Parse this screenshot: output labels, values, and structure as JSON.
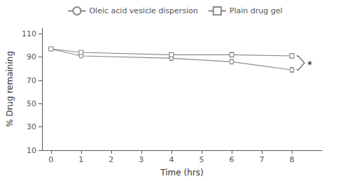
{
  "chart_data": {
    "type": "line",
    "xlabel": "Time (hrs)",
    "ylabel": "% Drug remaining",
    "x": [
      0,
      1,
      4,
      6,
      8
    ],
    "series": [
      {
        "name": "Oleic acid vesicle dispersion",
        "color": "#888888",
        "marker": "circle",
        "values": [
          97,
          91,
          89,
          86,
          79
        ],
        "errors": [
          1.0,
          1.5,
          2.0,
          2.0,
          2.0
        ]
      },
      {
        "name": "Plain drug gel",
        "color": "#888888",
        "marker": "square",
        "values": [
          97,
          94,
          92,
          92,
          91
        ],
        "errors": [
          1.0,
          1.5,
          1.5,
          2.0,
          2.0
        ]
      }
    ],
    "xlim": [
      -0.3,
      9.0
    ],
    "xticks": [
      0,
      1,
      2,
      3,
      4,
      5,
      6,
      7,
      8
    ],
    "ylim": [
      10,
      115
    ],
    "yticks": [
      10,
      30,
      50,
      70,
      90,
      110
    ],
    "grid": false,
    "legend": "top",
    "annotations": [
      {
        "text": "*"
      }
    ]
  }
}
